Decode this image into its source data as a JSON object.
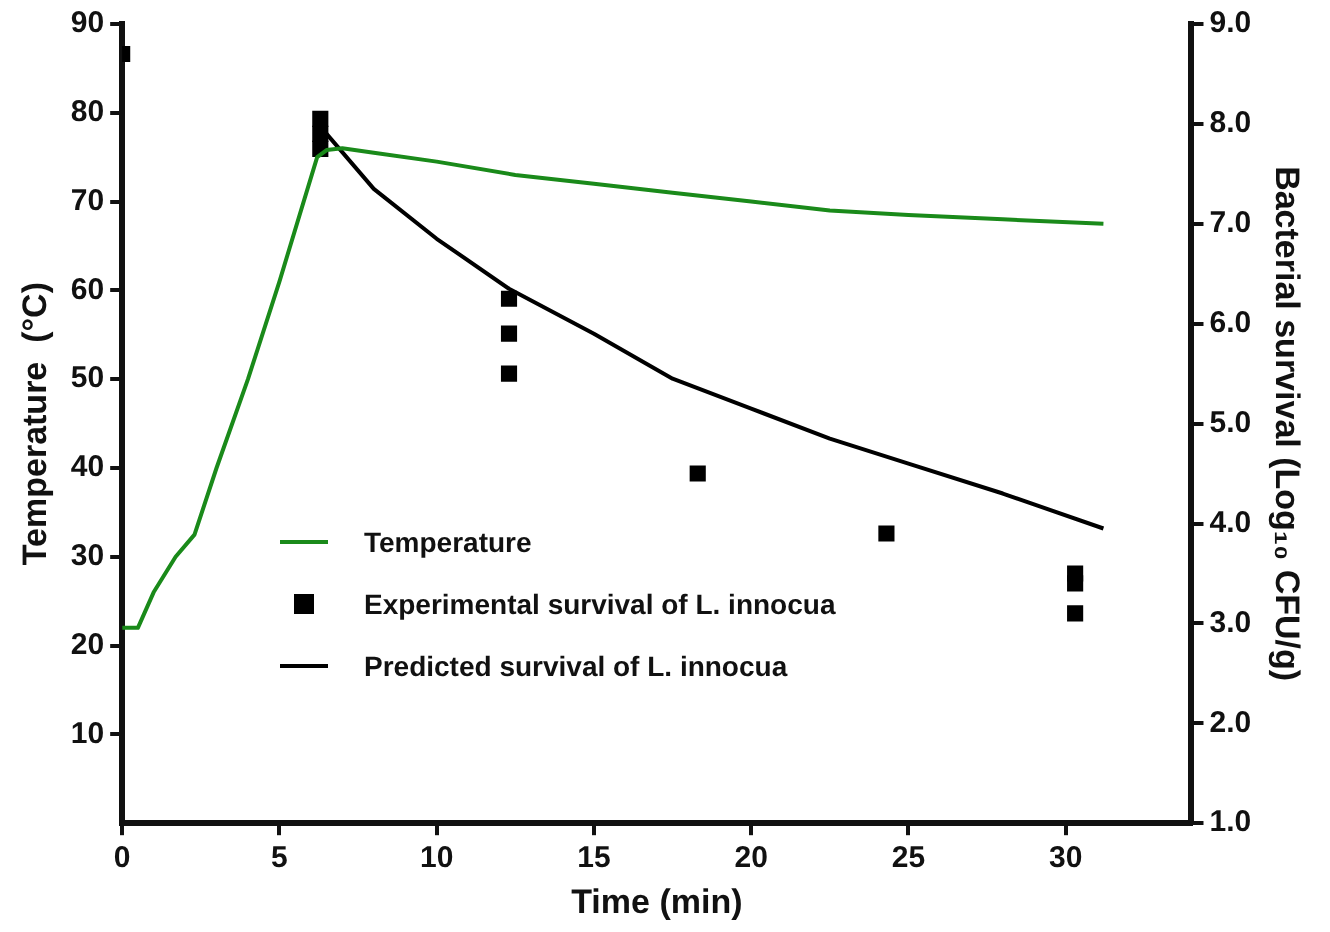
{
  "chart_data": {
    "type": "line",
    "xlabel": "Time (min)",
    "ylabel": "Temperature  (°C)",
    "y2label": "Bacterial survival (Log₁₀ CFU/g)",
    "xlim": [
      0,
      34
    ],
    "xticks": [
      0,
      5,
      10,
      15,
      20,
      25,
      30
    ],
    "ylim": [
      0,
      90
    ],
    "yticks": [
      10,
      20,
      30,
      40,
      50,
      60,
      70,
      80,
      90
    ],
    "y2lim": [
      1,
      9
    ],
    "y2ticks": [
      {
        "value": 1,
        "label": "1.0"
      },
      {
        "value": 2,
        "label": "2.0"
      },
      {
        "value": 3,
        "label": "3.0"
      },
      {
        "value": 4,
        "label": "4.0"
      },
      {
        "value": 5,
        "label": "5.0"
      },
      {
        "value": 6,
        "label": "6.0"
      },
      {
        "value": 7,
        "label": "7.0"
      },
      {
        "value": 8,
        "label": "8.0"
      },
      {
        "value": 9,
        "label": "9.0"
      }
    ],
    "grid": false,
    "legend": "bottom left",
    "line_style": "solid",
    "series": [
      {
        "name": "Temperature",
        "color": "#1a8a1a",
        "marker": "none",
        "x": [
          0,
          0.5,
          1,
          1.7,
          2.3,
          3,
          4,
          5,
          6.2,
          6.5,
          7,
          8,
          10,
          12.5,
          15,
          17.5,
          20,
          22.5,
          25,
          28,
          31.2
        ],
        "values": [
          22,
          22,
          26,
          30,
          32.5,
          40,
          50,
          61,
          75,
          75.8,
          76,
          75.5,
          74.5,
          73,
          72,
          71,
          70,
          69,
          68.5,
          68,
          67.5
        ]
      },
      {
        "name": "Experimental survival of L. innocua",
        "type": "scatter",
        "axis": "y2",
        "color": "#000000",
        "marker": "square",
        "x": [
          0,
          6.3,
          6.3,
          6.3,
          12.3,
          12.3,
          12.3,
          18.3,
          24.3,
          30.3,
          30.3,
          30.3
        ],
        "values": [
          8.7,
          8.05,
          7.9,
          7.75,
          6.25,
          5.9,
          5.5,
          4.5,
          3.9,
          3.5,
          3.4,
          3.1
        ]
      },
      {
        "name": "Predicted survival of L. innocua",
        "axis": "y2",
        "color": "#000000",
        "marker": "none",
        "x": [
          6.5,
          8,
          10,
          12.3,
          15,
          17.5,
          20,
          22.5,
          25,
          28,
          31.2
        ],
        "values": [
          7.9,
          7.35,
          6.85,
          6.35,
          5.9,
          5.45,
          5.15,
          4.85,
          4.6,
          4.3,
          3.95
        ]
      }
    ]
  }
}
